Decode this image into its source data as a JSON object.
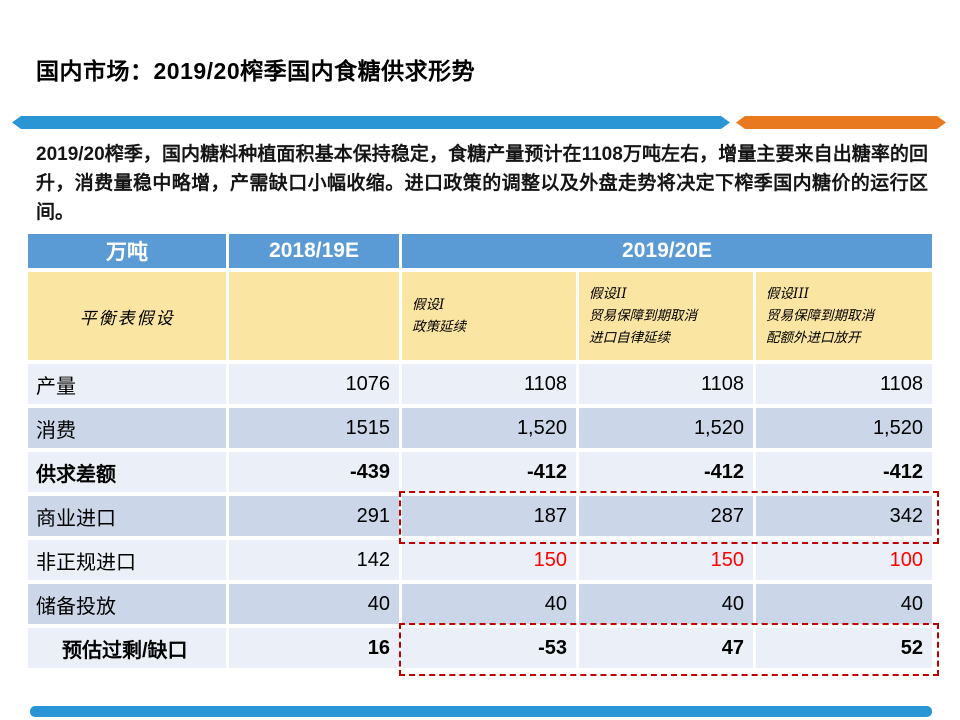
{
  "slide": {
    "title": "国内市场：2019/20榨季国内食糖供求形势",
    "paragraph": "2019/20榨季，国内糖料种植面积基本保持稳定，食糖产量预计在1108万吨左右，增量主要来自出糖率的回升，消费量稳中略增，产需缺口小幅收缩。进口政策的调整以及外盘走势将决定下榨季国内糖价的运行区间。"
  },
  "colors": {
    "header_blue": "#5B9BD5",
    "assumption_yellow": "#FBE5A3",
    "row_light": "#EBF0F8",
    "row_medium": "#CBD7E9",
    "divider_blue": "#2A95D5",
    "divider_orange": "#E8791F",
    "highlight_text_red": "#FF0000",
    "dashed_border_red": "#C00000"
  },
  "table": {
    "unit_header": "万吨",
    "col_2018": "2018/19E",
    "col_2019": "2019/20E",
    "assumption_label": "平衡表假设",
    "assumptions": [
      {
        "lines": [
          "假设I",
          "政策延续"
        ]
      },
      {
        "lines": [
          "假设II",
          "贸易保障到期取消",
          "进口自律延续"
        ]
      },
      {
        "lines": [
          "假设III",
          "贸易保障到期取消",
          "配额外进口放开"
        ]
      }
    ],
    "rows": [
      {
        "label": "产量",
        "values": [
          "1076",
          "1108",
          "1108",
          "1108"
        ]
      },
      {
        "label": "消费",
        "values": [
          "1515",
          "1,520",
          "1,520",
          "1,520"
        ]
      },
      {
        "label": "供求差额",
        "values": [
          "-439",
          "-412",
          "-412",
          "-412"
        ]
      },
      {
        "label": "商业进口",
        "values": [
          "291",
          "187",
          "287",
          "342"
        ]
      },
      {
        "label": "非正规进口",
        "values": [
          "142",
          "150",
          "150",
          "100"
        ]
      },
      {
        "label": "储备投放",
        "values": [
          "40",
          "40",
          "40",
          "40"
        ]
      },
      {
        "label": "预估过剩/缺口",
        "values": [
          "16",
          "-53",
          "47",
          "52"
        ]
      }
    ]
  }
}
